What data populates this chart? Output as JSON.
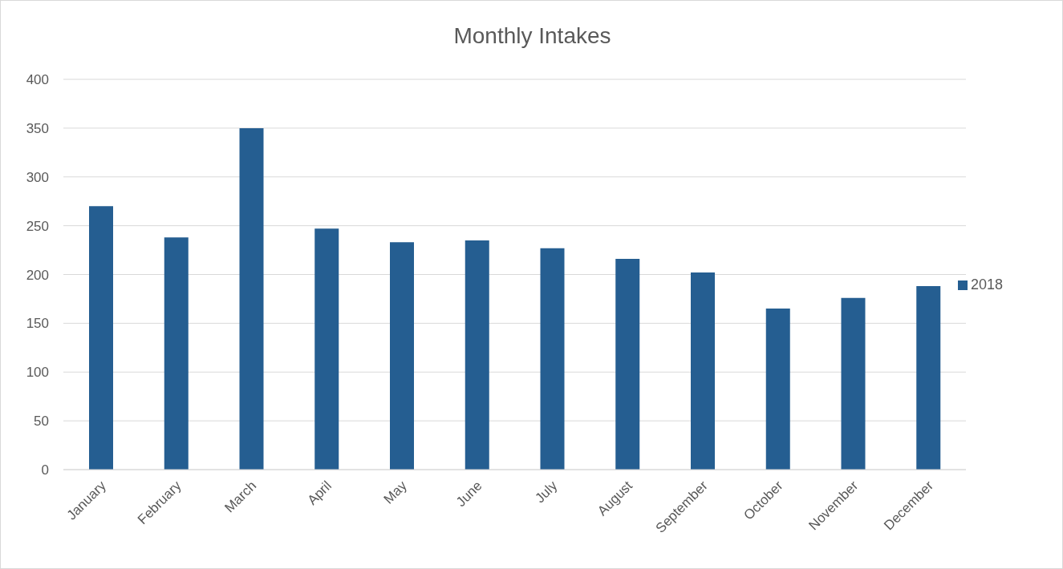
{
  "chart_data": {
    "type": "bar",
    "title": "Monthly Intakes",
    "categories": [
      "January",
      "February",
      "March",
      "April",
      "May",
      "June",
      "July",
      "August",
      "September",
      "October",
      "November",
      "December"
    ],
    "series": [
      {
        "name": "2018",
        "color": "#255e91",
        "values": [
          270,
          238,
          350,
          247,
          233,
          235,
          227,
          216,
          202,
          165,
          176,
          188
        ]
      }
    ],
    "ylim": [
      0,
      400
    ],
    "yticks": [
      0,
      50,
      100,
      150,
      200,
      250,
      300,
      350,
      400
    ],
    "grid": "y",
    "legend": "right"
  }
}
